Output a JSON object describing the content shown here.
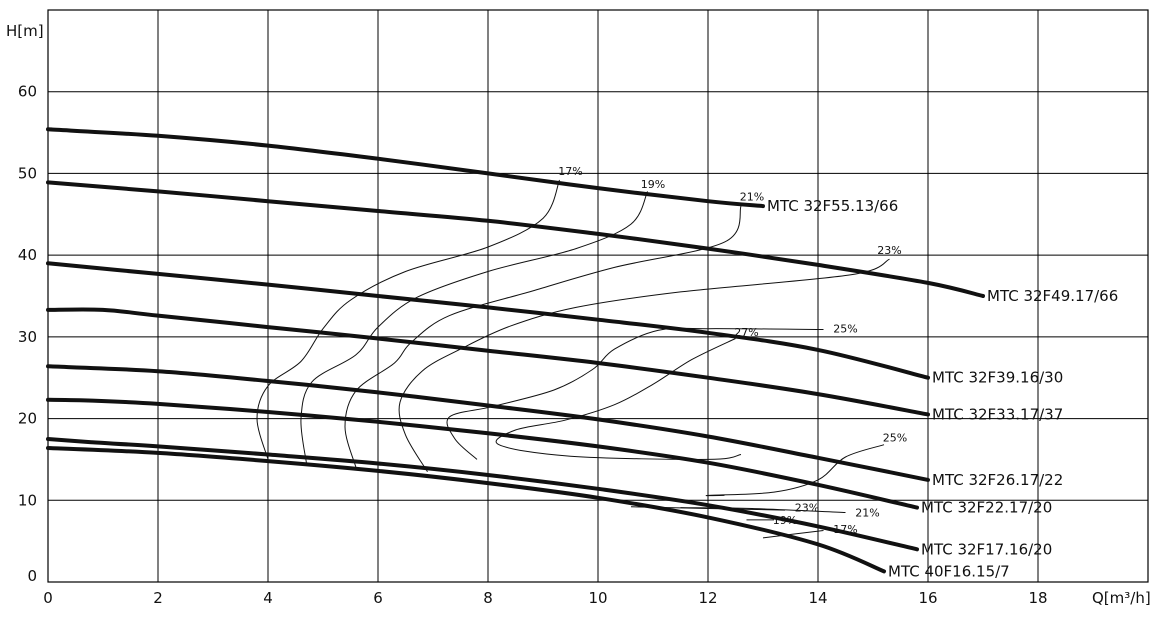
{
  "chart_data": {
    "type": "line",
    "xlabel": "Q[m³/h]",
    "ylabel": "H[m]",
    "xlim": [
      0,
      20
    ],
    "ylim": [
      0,
      70
    ],
    "x_ticks": [
      0,
      2,
      4,
      6,
      8,
      10,
      12,
      14,
      16,
      18
    ],
    "y_ticks": [
      0,
      10,
      20,
      30,
      40,
      50,
      60
    ],
    "grid": true,
    "series": [
      {
        "name": "MTC 32F55.13/66",
        "points": [
          [
            0,
            55.4
          ],
          [
            2,
            54.6
          ],
          [
            4,
            53.4
          ],
          [
            6,
            51.8
          ],
          [
            8,
            50.0
          ],
          [
            10,
            48.2
          ],
          [
            12,
            46.6
          ],
          [
            13,
            46.0
          ]
        ]
      },
      {
        "name": "MTC 32F49.17/66",
        "points": [
          [
            0,
            48.9
          ],
          [
            2,
            47.8
          ],
          [
            4,
            46.6
          ],
          [
            6,
            45.4
          ],
          [
            8,
            44.2
          ],
          [
            10,
            42.6
          ],
          [
            12,
            40.8
          ],
          [
            14,
            38.8
          ],
          [
            16,
            36.6
          ],
          [
            17,
            35.0
          ]
        ]
      },
      {
        "name": "MTC 32F39.16/30",
        "points": [
          [
            0,
            39.0
          ],
          [
            2,
            37.7
          ],
          [
            4,
            36.4
          ],
          [
            6,
            35.0
          ],
          [
            8,
            33.6
          ],
          [
            10,
            32.1
          ],
          [
            12,
            30.5
          ],
          [
            14,
            28.4
          ],
          [
            16,
            25.0
          ]
        ]
      },
      {
        "name": "MTC 32F33.17/37",
        "points": [
          [
            0,
            33.3
          ],
          [
            1,
            33.3
          ],
          [
            2,
            32.6
          ],
          [
            4,
            31.2
          ],
          [
            6,
            29.8
          ],
          [
            8,
            28.3
          ],
          [
            10,
            26.8
          ],
          [
            12,
            25.0
          ],
          [
            14,
            23.0
          ],
          [
            16,
            20.5
          ]
        ]
      },
      {
        "name": "MTC 32F26.17/22",
        "points": [
          [
            0,
            26.4
          ],
          [
            2,
            25.8
          ],
          [
            4,
            24.6
          ],
          [
            6,
            23.2
          ],
          [
            8,
            21.6
          ],
          [
            10,
            19.9
          ],
          [
            12,
            17.8
          ],
          [
            14,
            15.2
          ],
          [
            16,
            12.5
          ]
        ]
      },
      {
        "name": "MTC 32F22.17/20",
        "points": [
          [
            0,
            22.3
          ],
          [
            0.8,
            22.2
          ],
          [
            2,
            21.8
          ],
          [
            4,
            20.8
          ],
          [
            6,
            19.6
          ],
          [
            8,
            18.2
          ],
          [
            10,
            16.6
          ],
          [
            12,
            14.6
          ],
          [
            14,
            11.9
          ],
          [
            15.8,
            9.1
          ]
        ]
      },
      {
        "name": "MTC 32F17.16/20",
        "points": [
          [
            0,
            17.5
          ],
          [
            0.8,
            17.1
          ],
          [
            2,
            16.6
          ],
          [
            4,
            15.6
          ],
          [
            6,
            14.5
          ],
          [
            8,
            13.1
          ],
          [
            10,
            11.4
          ],
          [
            12,
            9.4
          ],
          [
            14,
            6.8
          ],
          [
            15.8,
            4.0
          ]
        ]
      },
      {
        "name": "MTC 40F16.15/7",
        "points": [
          [
            0,
            16.4
          ],
          [
            2,
            15.8
          ],
          [
            4,
            14.8
          ],
          [
            6,
            13.6
          ],
          [
            8,
            12.1
          ],
          [
            10,
            10.3
          ],
          [
            12,
            7.9
          ],
          [
            14,
            4.6
          ],
          [
            15.2,
            1.3
          ]
        ]
      }
    ],
    "efficiency_lines": [
      {
        "label": "17%",
        "label_at": [
          9.5,
          50.3
        ],
        "points": [
          [
            9.3,
            49.2
          ],
          [
            9.0,
            44.5
          ],
          [
            8.0,
            41.0
          ],
          [
            6.5,
            38.0
          ],
          [
            5.5,
            34.5
          ],
          [
            5.0,
            31.0
          ],
          [
            4.6,
            27.0
          ],
          [
            4.0,
            24.0
          ],
          [
            3.8,
            20.0
          ],
          [
            4.0,
            15.0
          ]
        ]
      },
      {
        "label": "19%",
        "label_at": [
          11.0,
          48.7
        ],
        "points": [
          [
            10.9,
            47.8
          ],
          [
            10.6,
            43.8
          ],
          [
            9.6,
            40.8
          ],
          [
            8.0,
            38.0
          ],
          [
            6.7,
            34.8
          ],
          [
            6.0,
            31.2
          ],
          [
            5.6,
            27.8
          ],
          [
            4.8,
            24.5
          ],
          [
            4.6,
            20.0
          ],
          [
            4.7,
            14.5
          ]
        ]
      },
      {
        "label": "21%",
        "label_at": [
          12.8,
          47.2
        ],
        "points": [
          [
            12.6,
            46.0
          ],
          [
            12.3,
            41.6
          ],
          [
            10.3,
            38.5
          ],
          [
            8.8,
            35.6
          ],
          [
            7.3,
            32.6
          ],
          [
            6.6,
            29.3
          ],
          [
            6.3,
            26.8
          ],
          [
            5.6,
            23.4
          ],
          [
            5.4,
            19.0
          ],
          [
            5.6,
            14.0
          ]
        ]
      },
      {
        "label": "23%",
        "label_at": [
          15.3,
          40.6
        ],
        "points": [
          [
            15.3,
            39.5
          ],
          [
            14.6,
            37.6
          ],
          [
            11.5,
            35.5
          ],
          [
            9.6,
            33.6
          ],
          [
            8.4,
            31.3
          ],
          [
            7.5,
            28.5
          ],
          [
            6.8,
            25.8
          ],
          [
            6.4,
            22.0
          ],
          [
            6.5,
            18.0
          ],
          [
            6.9,
            13.5
          ]
        ]
      },
      {
        "label": "25%",
        "label_at": [
          14.5,
          31.0
        ],
        "points": [
          [
            14.1,
            30.9
          ],
          [
            12.0,
            31.0
          ],
          [
            11.1,
            30.8
          ],
          [
            10.3,
            28.5
          ],
          [
            9.9,
            26.0
          ],
          [
            9.2,
            23.5
          ],
          [
            8.1,
            21.5
          ],
          [
            7.3,
            20.2
          ],
          [
            7.4,
            17.5
          ],
          [
            7.8,
            15.0
          ]
        ]
      },
      {
        "label": "27%",
        "label_at": [
          12.7,
          30.6
        ],
        "points": [
          [
            12.5,
            29.8
          ],
          [
            11.7,
            27.2
          ],
          [
            11.0,
            24.2
          ],
          [
            10.3,
            21.7
          ],
          [
            9.4,
            19.8
          ],
          [
            8.5,
            18.6
          ],
          [
            8.2,
            16.8
          ],
          [
            9.5,
            15.4
          ],
          [
            12.0,
            15.0
          ],
          [
            12.6,
            15.6
          ]
        ]
      },
      {
        "label": "25%",
        "label_at": [
          15.4,
          17.7
        ],
        "points": [
          [
            15.2,
            16.8
          ],
          [
            14.5,
            15.3
          ],
          [
            14.0,
            12.5
          ],
          [
            13.2,
            11.0
          ],
          [
            12.0,
            10.6
          ],
          [
            12.3,
            10.6
          ]
        ]
      },
      {
        "label": "23%",
        "label_at": [
          13.8,
          9.1
        ],
        "points": [
          [
            13.4,
            8.8
          ],
          [
            10.6,
            9.2
          ]
        ]
      },
      {
        "label": "21%",
        "label_at": [
          14.9,
          8.5
        ],
        "points": [
          [
            14.5,
            8.5
          ],
          [
            12.8,
            9.0
          ],
          [
            11.5,
            9.1
          ]
        ]
      },
      {
        "label": "19%",
        "label_at": [
          13.4,
          7.6
        ],
        "points": [
          [
            13.2,
            7.6
          ],
          [
            12.7,
            7.6
          ]
        ]
      },
      {
        "label": "17%",
        "label_at": [
          14.5,
          6.5
        ],
        "points": [
          [
            14.1,
            6.3
          ],
          [
            13.0,
            5.4
          ]
        ]
      }
    ]
  }
}
